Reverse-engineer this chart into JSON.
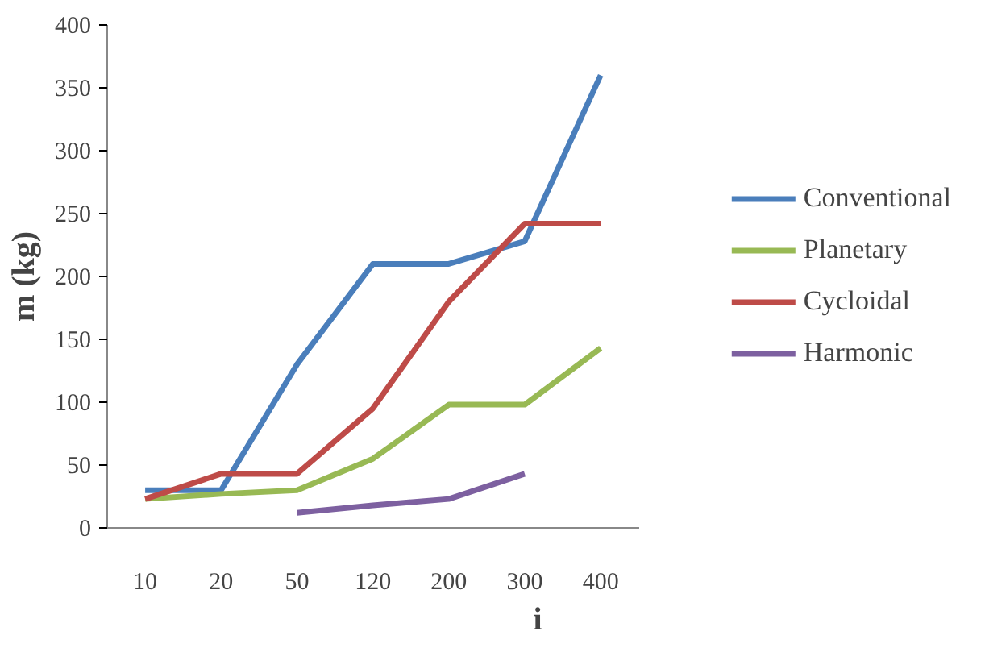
{
  "chart_data": {
    "type": "line",
    "xlabel": "i",
    "ylabel": "m (kg)",
    "categories": [
      "10",
      "20",
      "50",
      "120",
      "200",
      "300",
      "400"
    ],
    "ylim": [
      0,
      400
    ],
    "yticks": [
      0,
      50,
      100,
      150,
      200,
      250,
      300,
      350,
      400
    ],
    "legend": "right",
    "series": [
      {
        "name": "Conventional",
        "color": "#4a7ebb",
        "values": [
          30,
          30,
          130,
          210,
          210,
          228,
          360
        ]
      },
      {
        "name": "Planetary",
        "color": "#98b954",
        "values": [
          23,
          27,
          30,
          55,
          98,
          98,
          143
        ]
      },
      {
        "name": "Cycloidal",
        "color": "#be4b48",
        "values": [
          23,
          43,
          43,
          95,
          180,
          242,
          242
        ]
      },
      {
        "name": "Harmonic",
        "color": "#7d60a0",
        "values": [
          null,
          null,
          12,
          18,
          23,
          43,
          null
        ]
      }
    ]
  }
}
